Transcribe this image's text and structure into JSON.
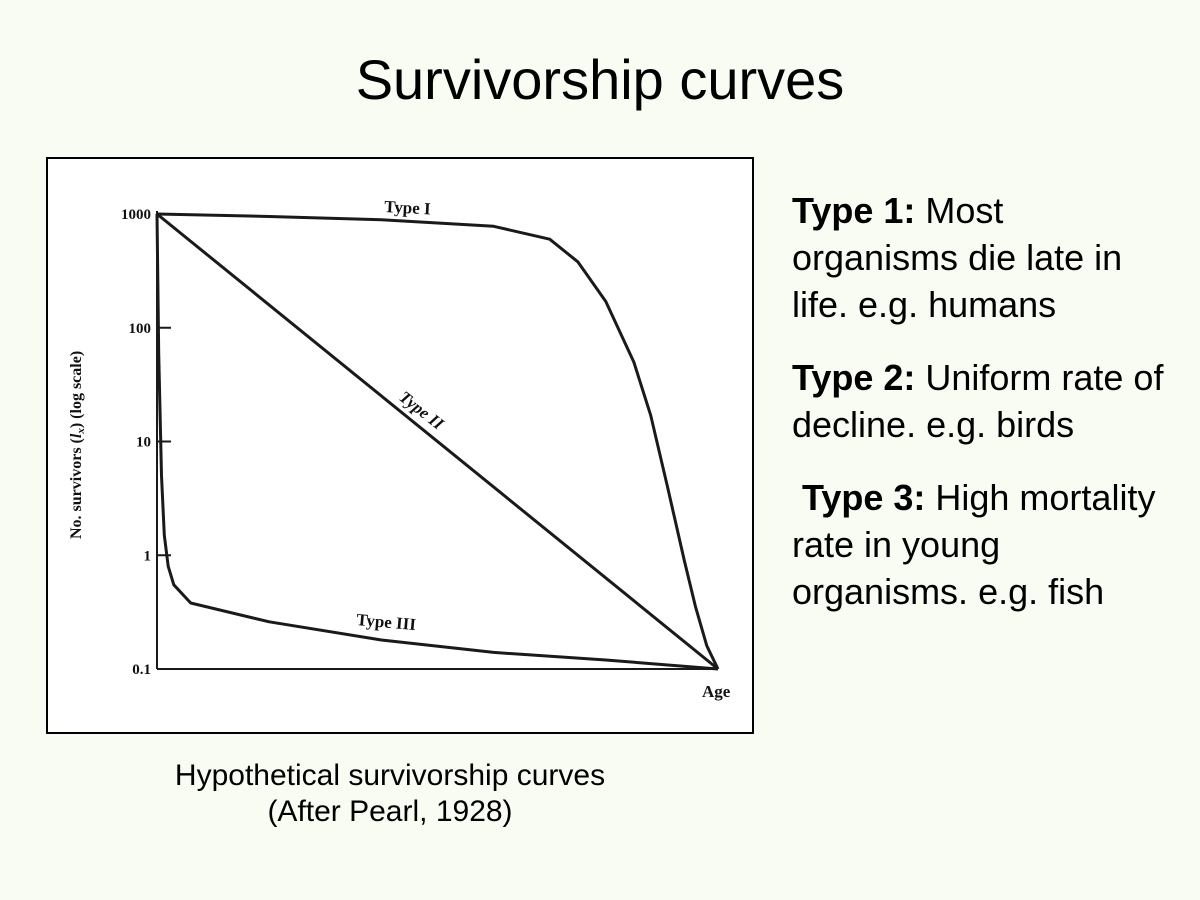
{
  "slide": {
    "title": "Survivorship curves",
    "caption_line1": "Hypothetical survivorship curves",
    "caption_line2": "(After Pearl, 1928)"
  },
  "notes": [
    {
      "head": "Type 1:",
      "body": " Most organisms die late in life. e.g. humans"
    },
    {
      "head": "Type 2:",
      "body": " Uniform rate of decline. e.g. birds"
    },
    {
      "head": " Type 3:",
      "body": " High mortality rate in young organisms. e.g. fish"
    }
  ],
  "chart_data": {
    "type": "line",
    "ylabel_main": "No. survivors (",
    "ylabel_var": "l",
    "ylabel_sub": "x",
    "ylabel_end": ")  (log scale)",
    "xlabel": "Age",
    "y_scale": "log",
    "ylim": [
      0.1,
      1000
    ],
    "xlim": [
      0,
      1
    ],
    "y_ticks": [
      {
        "value": 1000,
        "label": "1000"
      },
      {
        "value": 100,
        "label": "100"
      },
      {
        "value": 10,
        "label": "10"
      },
      {
        "value": 1,
        "label": "1"
      },
      {
        "value": 0.1,
        "label": "0.1"
      }
    ],
    "grid": false,
    "series": [
      {
        "name": "Type I",
        "color": "#1a1a1a",
        "x": [
          0,
          0.2,
          0.4,
          0.6,
          0.7,
          0.75,
          0.8,
          0.85,
          0.88,
          0.91,
          0.94,
          0.96,
          0.98,
          1.0
        ],
        "y": [
          1000,
          950,
          890,
          780,
          600,
          380,
          170,
          50,
          17,
          4,
          0.9,
          0.35,
          0.16,
          0.1
        ]
      },
      {
        "name": "Type II",
        "color": "#1a1a1a",
        "x": [
          0,
          1.0
        ],
        "y": [
          1000,
          0.1
        ]
      },
      {
        "name": "Type III",
        "color": "#1a1a1a",
        "x": [
          0,
          0.003,
          0.008,
          0.013,
          0.02,
          0.03,
          0.06,
          0.2,
          0.4,
          0.6,
          0.8,
          1.0
        ],
        "y": [
          1000,
          60,
          5,
          1.5,
          0.8,
          0.55,
          0.38,
          0.26,
          0.18,
          0.14,
          0.12,
          0.1
        ]
      }
    ]
  }
}
